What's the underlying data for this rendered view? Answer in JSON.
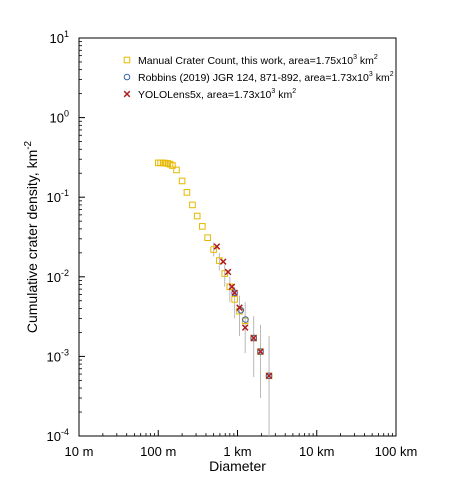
{
  "chart_data": {
    "type": "scatter",
    "title": "",
    "xlabel": "Diameter",
    "ylabel": "Cumulative crater density, km",
    "ylabel_sup": "-2",
    "x_scale": "log",
    "y_scale": "log",
    "x_unit": "m",
    "xlim": [
      10,
      100000
    ],
    "ylim": [
      0.0001,
      10
    ],
    "grid": false,
    "legend_position": "top-right",
    "x_ticks": [
      {
        "value": 10,
        "label": "10 m"
      },
      {
        "value": 100,
        "label": "100 m"
      },
      {
        "value": 1000,
        "label": "1 km"
      },
      {
        "value": 10000,
        "label": "10 km"
      },
      {
        "value": 100000,
        "label": "100 km"
      }
    ],
    "y_ticks": [
      {
        "value": 0.0001,
        "base": "10",
        "exp": "-4"
      },
      {
        "value": 0.001,
        "base": "10",
        "exp": "-3"
      },
      {
        "value": 0.01,
        "base": "10",
        "exp": "-2"
      },
      {
        "value": 0.1,
        "base": "10",
        "exp": "-1"
      },
      {
        "value": 1,
        "base": "10",
        "exp": "0"
      },
      {
        "value": 10,
        "base": "10",
        "exp": "1"
      }
    ],
    "series": [
      {
        "name": "Manual Crater Count, this work, area=1.75x10",
        "name_sup": "3",
        "name_tail": " km",
        "name_tail_sup": "2",
        "marker": "square",
        "color": "#e6b800",
        "points": [
          {
            "x": 100,
            "y": 0.27
          },
          {
            "x": 107,
            "y": 0.27
          },
          {
            "x": 115,
            "y": 0.27
          },
          {
            "x": 123,
            "y": 0.268
          },
          {
            "x": 132,
            "y": 0.265
          },
          {
            "x": 141,
            "y": 0.26
          },
          {
            "x": 151,
            "y": 0.25
          },
          {
            "x": 170,
            "y": 0.22
          },
          {
            "x": 200,
            "y": 0.16
          },
          {
            "x": 230,
            "y": 0.115
          },
          {
            "x": 270,
            "y": 0.08
          },
          {
            "x": 310,
            "y": 0.058
          },
          {
            "x": 360,
            "y": 0.043
          },
          {
            "x": 420,
            "y": 0.031
          },
          {
            "x": 500,
            "y": 0.022
          },
          {
            "x": 590,
            "y": 0.016
          },
          {
            "x": 690,
            "y": 0.011
          },
          {
            "x": 800,
            "y": 0.0075
          },
          {
            "x": 920,
            "y": 0.0052
          },
          {
            "x": 1060,
            "y": 0.0037
          },
          {
            "x": 1250,
            "y": 0.0028
          },
          {
            "x": 1600,
            "y": 0.0017
          },
          {
            "x": 1950,
            "y": 0.00115
          },
          {
            "x": 2500,
            "y": 0.00057
          }
        ]
      },
      {
        "name": "Robbins (2019) JGR 124, 871-892, area=1.73x10",
        "name_sup": "3",
        "name_tail": " km",
        "name_tail_sup": "2",
        "marker": "circle",
        "color": "#3a64b0",
        "points": [
          {
            "x": 920,
            "y": 0.0063
          },
          {
            "x": 1100,
            "y": 0.0038
          },
          {
            "x": 1260,
            "y": 0.0029
          },
          {
            "x": 1600,
            "y": 0.0017
          },
          {
            "x": 1950,
            "y": 0.00115
          },
          {
            "x": 2500,
            "y": 0.00057
          }
        ]
      },
      {
        "name": "YOLOLens5x, area=1.73x10",
        "name_sup": "3",
        "name_tail": " km",
        "name_tail_sup": "2",
        "marker": "x",
        "color": "#b01c1c",
        "points": [
          {
            "x": 550,
            "y": 0.024
          },
          {
            "x": 660,
            "y": 0.0155
          },
          {
            "x": 760,
            "y": 0.0115
          },
          {
            "x": 850,
            "y": 0.0075
          },
          {
            "x": 920,
            "y": 0.0063
          },
          {
            "x": 1060,
            "y": 0.0041
          },
          {
            "x": 1250,
            "y": 0.0023
          },
          {
            "x": 1600,
            "y": 0.0017
          },
          {
            "x": 1950,
            "y": 0.00115
          },
          {
            "x": 2500,
            "y": 0.00057
          }
        ]
      }
    ],
    "error_bars": [
      {
        "x": 500,
        "low": 0.018,
        "high": 0.027
      },
      {
        "x": 590,
        "low": 0.012,
        "high": 0.02
      },
      {
        "x": 690,
        "low": 0.0075,
        "high": 0.014
      },
      {
        "x": 800,
        "low": 0.0048,
        "high": 0.01
      },
      {
        "x": 920,
        "low": 0.003,
        "high": 0.0075
      },
      {
        "x": 1060,
        "low": 0.0018,
        "high": 0.0058
      },
      {
        "x": 1250,
        "low": 0.0011,
        "high": 0.0048
      },
      {
        "x": 1600,
        "low": 0.00055,
        "high": 0.0032
      },
      {
        "x": 1950,
        "low": 0.0003,
        "high": 0.0025
      },
      {
        "x": 2500,
        "low": 0.0001,
        "high": 0.0018
      }
    ]
  }
}
